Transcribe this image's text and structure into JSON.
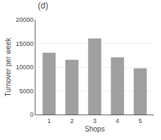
{
  "chart_data": {
    "type": "bar",
    "title": "(d)",
    "xlabel": "Shops",
    "ylabel": "Turnover per week",
    "categories": [
      "1",
      "2",
      "3",
      "4",
      "5"
    ],
    "values": [
      13000,
      11500,
      16000,
      12000,
      9700
    ],
    "color": "#a0a0a0",
    "ylim": [
      0,
      20000
    ],
    "yticks": [
      0,
      5000,
      10000,
      15000,
      20000
    ],
    "grid": true
  }
}
